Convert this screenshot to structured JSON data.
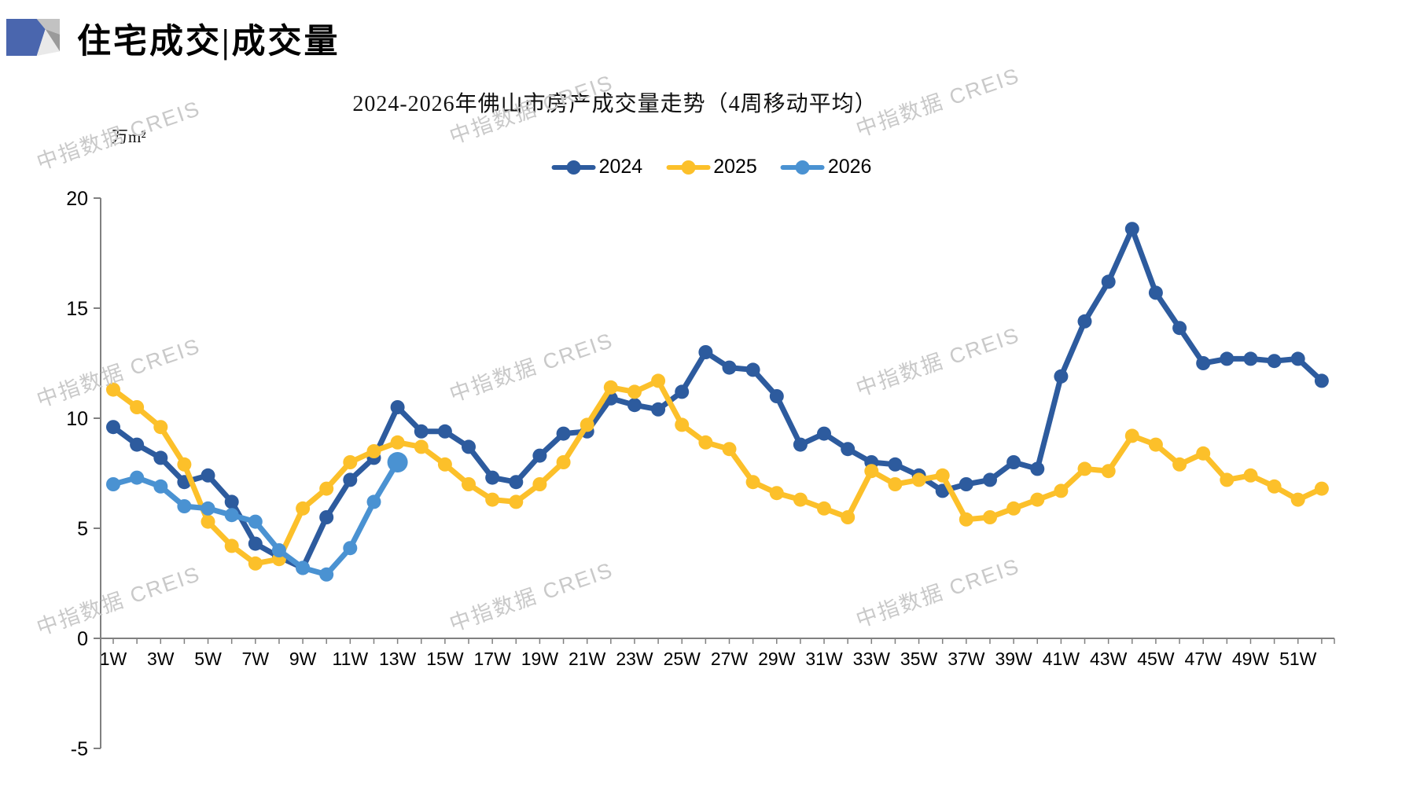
{
  "header": {
    "title": "住宅成交|成交量"
  },
  "watermark": {
    "text": "中指数据 CREIS"
  },
  "chart_data": {
    "type": "line",
    "title": "2024-2026年佛山市房产成交量走势（4周移动平均）",
    "unit": "万m²",
    "xlabel": "",
    "ylabel": "万m²",
    "ylim": [
      -5,
      20
    ],
    "y_ticks": [
      20,
      15,
      10,
      5,
      0,
      -5
    ],
    "x_tick_labels": [
      "1W",
      "3W",
      "5W",
      "7W",
      "9W",
      "11W",
      "13W",
      "15W",
      "17W",
      "19W",
      "21W",
      "23W",
      "25W",
      "27W",
      "29W",
      "31W",
      "33W",
      "35W",
      "37W",
      "39W",
      "41W",
      "43W",
      "45W",
      "47W",
      "49W",
      "51W"
    ],
    "x_weeks_total": 52,
    "grid": false,
    "legend_position": "top",
    "axis_color": "#808080",
    "series": [
      {
        "name": "2024",
        "color": "#2d5b9e",
        "values": [
          9.6,
          8.8,
          8.2,
          7.1,
          7.4,
          6.2,
          4.3,
          3.7,
          3.2,
          5.5,
          7.2,
          8.2,
          10.5,
          9.4,
          9.4,
          8.7,
          7.3,
          7.1,
          8.3,
          9.3,
          9.4,
          10.9,
          10.6,
          10.4,
          11.2,
          13.0,
          12.3,
          12.2,
          11.0,
          8.8,
          9.3,
          8.6,
          8.0,
          7.9,
          7.4,
          6.7,
          7.0,
          7.2,
          8.0,
          7.7,
          11.9,
          14.4,
          16.2,
          18.6,
          15.7,
          14.1,
          12.5,
          12.7,
          12.7,
          12.6,
          12.7,
          11.7
        ]
      },
      {
        "name": "2025",
        "color": "#fcc02a",
        "values": [
          11.3,
          10.5,
          9.6,
          7.9,
          5.3,
          4.2,
          3.4,
          3.6,
          5.9,
          6.8,
          8.0,
          8.5,
          8.9,
          8.7,
          7.9,
          7.0,
          6.3,
          6.2,
          7.0,
          8.0,
          9.7,
          11.4,
          11.2,
          11.7,
          9.7,
          8.9,
          8.6,
          7.1,
          6.6,
          6.3,
          5.9,
          5.5,
          7.6,
          7.0,
          7.2,
          7.4,
          5.4,
          5.5,
          5.9,
          6.3,
          6.7,
          7.7,
          7.6,
          9.2,
          8.8,
          7.9,
          8.4,
          7.2,
          7.4,
          6.9,
          6.3,
          6.8
        ]
      },
      {
        "name": "2026",
        "color": "#4a92d2",
        "values": [
          7.0,
          7.3,
          6.9,
          6.0,
          5.9,
          5.6,
          5.3,
          4.0,
          3.2,
          2.9,
          4.1,
          6.2,
          8.0
        ],
        "end_marker": true
      }
    ]
  }
}
